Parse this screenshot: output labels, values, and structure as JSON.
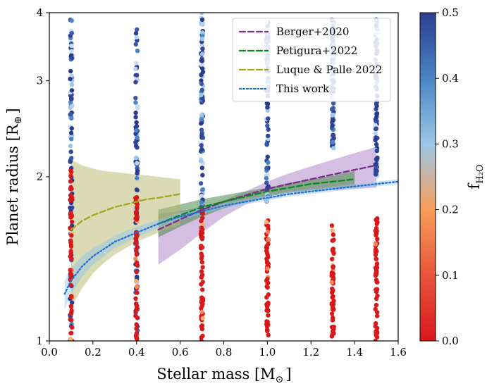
{
  "chart_data": {
    "type": "scatter",
    "xlabel": "Stellar mass [M",
    "xlabel_sub": "⊙",
    "xlabel_close": "]",
    "ylabel": "Planet radius [R",
    "ylabel_sub": "⊕",
    "ylabel_close": "]",
    "xlim": [
      0.0,
      1.6
    ],
    "ylim": [
      1,
      4
    ],
    "yscale": "log",
    "x_ticks": [
      0.0,
      0.2,
      0.4,
      0.6,
      0.8,
      1.0,
      1.2,
      1.4,
      1.6
    ],
    "x_tick_labels": [
      "0.0",
      "0.2",
      "0.4",
      "0.6",
      "0.8",
      "1.0",
      "1.2",
      "1.4",
      "1.6"
    ],
    "y_ticks": [
      1,
      2,
      3,
      4
    ],
    "y_tick_labels": [
      "1",
      "2",
      "3",
      "4"
    ],
    "colorbar": {
      "label": "f",
      "label_sub": "H₂O",
      "range": [
        0.0,
        0.5
      ],
      "ticks": [
        0.0,
        0.1,
        0.2,
        0.3,
        0.4,
        0.5
      ],
      "tick_labels": [
        "0.0",
        "0.1",
        "0.2",
        "0.3",
        "0.4",
        "0.5"
      ],
      "colors": [
        "#d7191c",
        "#e8553a",
        "#f99e5a",
        "#9cc8e8",
        "#4a86c5",
        "#2c3d8f"
      ]
    },
    "legend_position": "top-right",
    "scatter_columns": [
      {
        "x": 0.1,
        "red_range": [
          1.0,
          2.1
        ],
        "blue_range": [
          1.0,
          3.9
        ]
      },
      {
        "x": 0.4,
        "red_range": [
          1.0,
          1.85
        ],
        "blue_range": [
          1.0,
          3.8
        ]
      },
      {
        "x": 0.7,
        "red_range": [
          1.0,
          1.75
        ],
        "blue_range": [
          1.7,
          4.0
        ]
      },
      {
        "x": 1.0,
        "red_range": [
          1.0,
          1.7
        ],
        "blue_range": [
          1.8,
          3.9
        ]
      },
      {
        "x": 1.3,
        "red_range": [
          1.0,
          1.65
        ],
        "blue_range": [
          2.25,
          3.9
        ]
      },
      {
        "x": 1.5,
        "red_range": [
          1.0,
          1.7
        ],
        "blue_range": [
          2.0,
          3.9
        ]
      }
    ],
    "series": [
      {
        "name": "Berger+2020",
        "color": "#7b2d8e",
        "dash": "dashed",
        "x": [
          0.5,
          0.6,
          0.7,
          0.8,
          0.9,
          1.0,
          1.1,
          1.2,
          1.3,
          1.4,
          1.5
        ],
        "y": [
          1.6,
          1.67,
          1.74,
          1.8,
          1.85,
          1.9,
          1.94,
          1.98,
          2.02,
          2.06,
          2.1
        ],
        "band_lower": [
          1.38,
          1.47,
          1.58,
          1.69,
          1.78,
          1.84,
          1.87,
          1.88,
          1.89,
          1.9,
          1.91
        ],
        "band_upper": [
          1.71,
          1.73,
          1.76,
          1.81,
          1.88,
          1.96,
          2.03,
          2.09,
          2.15,
          2.21,
          2.27
        ]
      },
      {
        "name": "Petigura+2022",
        "color": "#0a8a1a",
        "dash": "dashed",
        "x": [
          0.5,
          0.6,
          0.7,
          0.8,
          0.9,
          1.0,
          1.1,
          1.2,
          1.3,
          1.4
        ],
        "y": [
          1.64,
          1.7,
          1.76,
          1.8,
          1.84,
          1.88,
          1.91,
          1.94,
          1.96,
          1.98
        ],
        "band_lower": [
          1.55,
          1.62,
          1.69,
          1.75,
          1.8,
          1.84,
          1.87,
          1.89,
          1.91,
          1.92
        ],
        "band_upper": [
          1.74,
          1.78,
          1.82,
          1.85,
          1.88,
          1.91,
          1.95,
          1.98,
          2.01,
          2.05
        ]
      },
      {
        "name": "Luque & Palle 2022",
        "color": "#a3a61a",
        "dash": "dashed",
        "x": [
          0.1,
          0.15,
          0.2,
          0.25,
          0.3,
          0.35,
          0.4,
          0.45,
          0.5,
          0.55,
          0.6
        ],
        "y": [
          1.6,
          1.66,
          1.7,
          1.73,
          1.76,
          1.78,
          1.8,
          1.82,
          1.83,
          1.845,
          1.86
        ],
        "band_lower": [
          1.15,
          1.25,
          1.33,
          1.39,
          1.44,
          1.48,
          1.52,
          1.55,
          1.58,
          1.61,
          1.63
        ],
        "band_upper": [
          2.15,
          2.1,
          2.07,
          2.05,
          2.04,
          2.03,
          2.02,
          2.01,
          2.0,
          1.99,
          1.98
        ]
      },
      {
        "name": "This work",
        "color": "#1f6fd6",
        "dash": "dotted",
        "x": [
          0.07,
          0.1,
          0.15,
          0.2,
          0.3,
          0.4,
          0.5,
          0.6,
          0.7,
          0.8,
          0.9,
          1.0,
          1.1,
          1.2,
          1.3,
          1.4,
          1.5,
          1.6
        ],
        "y": [
          1.22,
          1.29,
          1.37,
          1.43,
          1.52,
          1.58,
          1.64,
          1.69,
          1.73,
          1.77,
          1.8,
          1.83,
          1.86,
          1.88,
          1.9,
          1.92,
          1.94,
          1.96
        ],
        "band_lower": [
          1.14,
          1.22,
          1.31,
          1.38,
          1.48,
          1.55,
          1.61,
          1.66,
          1.71,
          1.75,
          1.78,
          1.81,
          1.84,
          1.86,
          1.88,
          1.9,
          1.92,
          1.94
        ],
        "band_upper": [
          1.29,
          1.36,
          1.43,
          1.48,
          1.56,
          1.62,
          1.67,
          1.72,
          1.76,
          1.79,
          1.82,
          1.85,
          1.88,
          1.9,
          1.92,
          1.94,
          1.96,
          1.98
        ]
      }
    ]
  }
}
